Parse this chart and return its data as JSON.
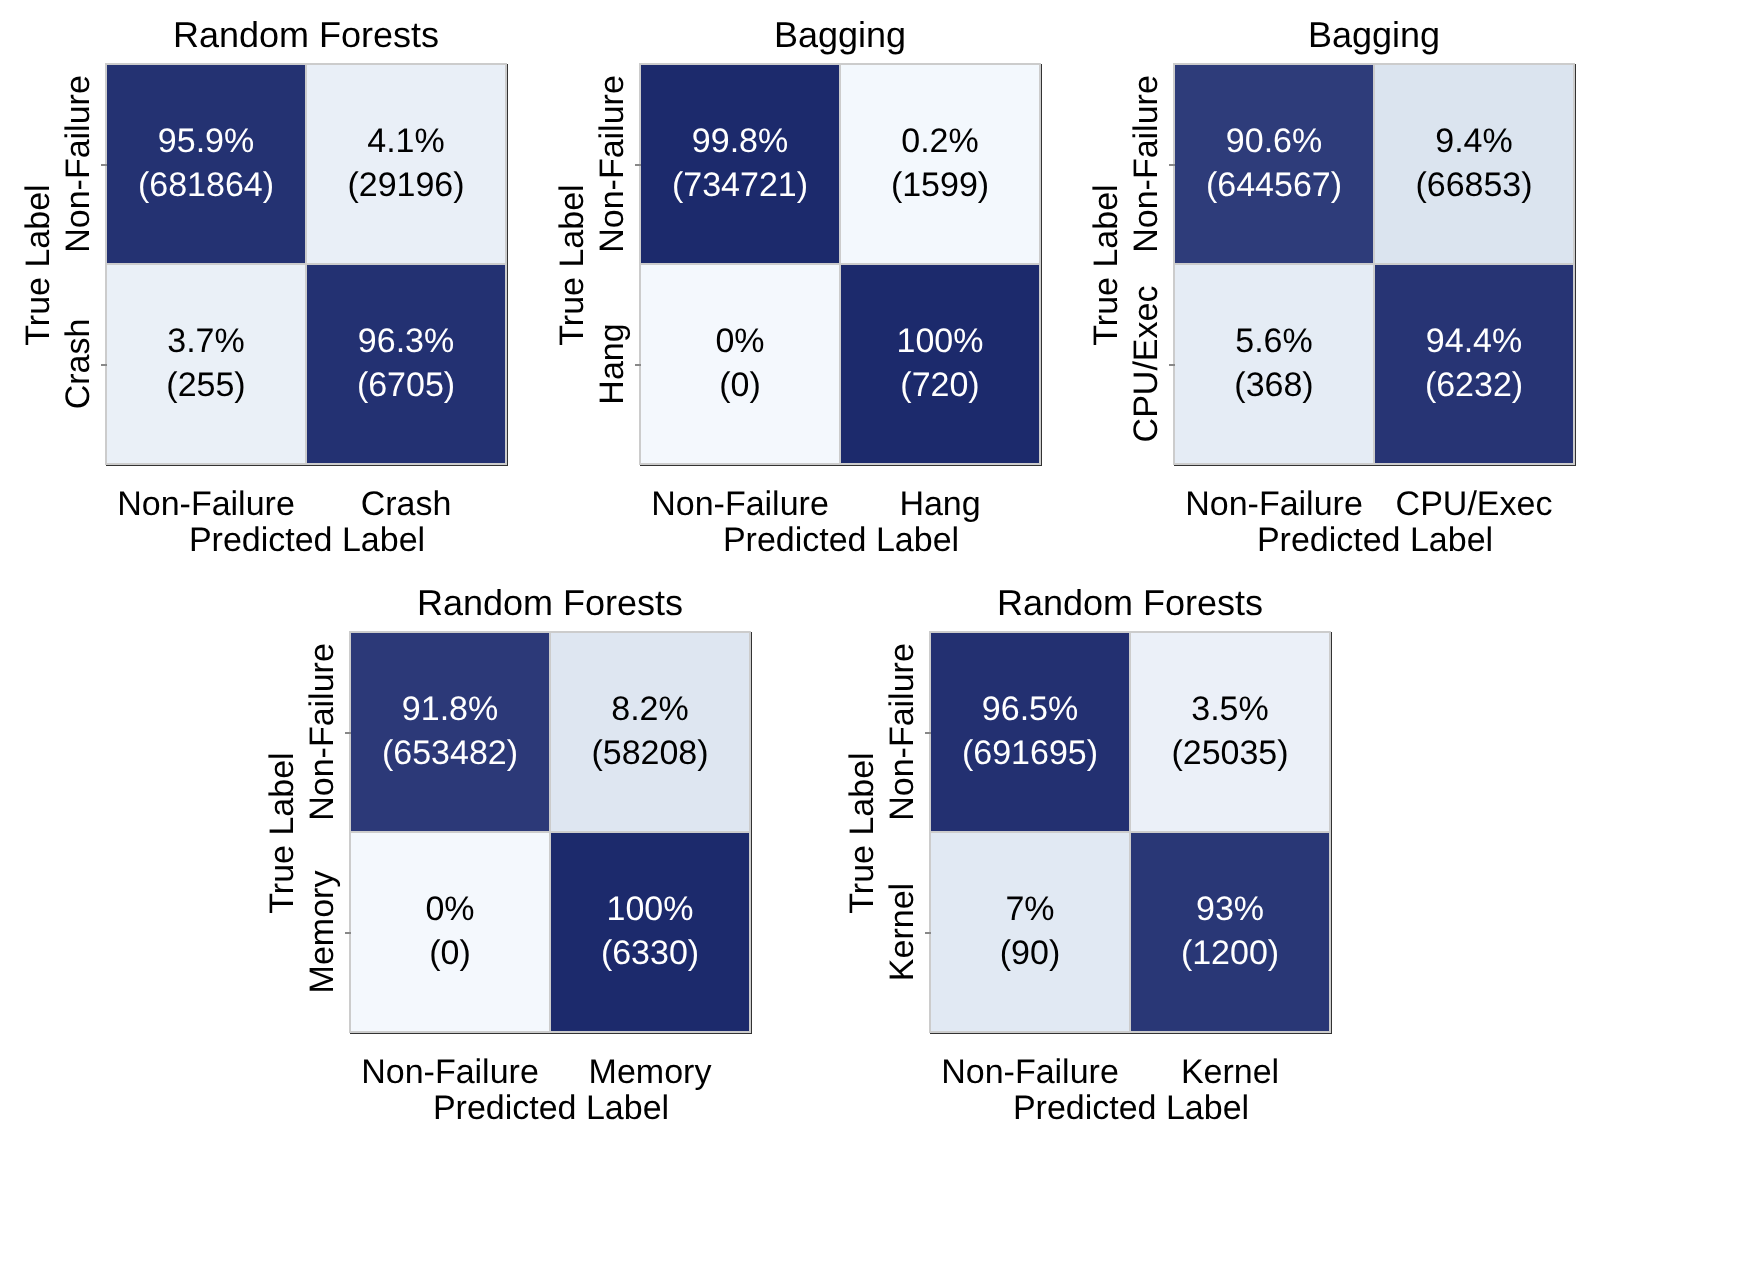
{
  "chart_data": [
    {
      "type": "heatmap",
      "title": "Random Forests",
      "xlabel": "Predicted Label",
      "ylabel": "True Label",
      "categories": [
        "Non-Failure",
        "Crash"
      ],
      "y_categories": [
        "Non-Failure",
        "Crash"
      ],
      "cells": [
        [
          95.9,
          4.1
        ],
        [
          3.7,
          96.3
        ]
      ],
      "cell_labels": [
        [
          "95.9%",
          "4.1%"
        ],
        [
          "3.7%",
          "96.3%"
        ]
      ],
      "annotations": [
        "(681864)",
        "(29196)",
        "(255)",
        "(6705)"
      ]
    },
    {
      "type": "heatmap",
      "title": "Bagging",
      "xlabel": "Predicted Label",
      "ylabel": "True Label",
      "categories": [
        "Non-Failure",
        "Hang"
      ],
      "y_categories": [
        "Non-Failure",
        "Hang"
      ],
      "cells": [
        [
          99.8,
          0.2
        ],
        [
          0,
          100
        ]
      ],
      "cell_labels": [
        [
          "99.8%",
          "0.2%"
        ],
        [
          "0%",
          "100%"
        ]
      ],
      "annotations": [
        "(734721)",
        "(1599)",
        "(0)",
        "(720)"
      ]
    },
    {
      "type": "heatmap",
      "title": "Bagging",
      "xlabel": "Predicted Label",
      "ylabel": "True Label",
      "categories": [
        "Non-Failure",
        "CPU/Exec"
      ],
      "y_categories": [
        "Non-Failure",
        "CPU/Exec"
      ],
      "cells": [
        [
          90.6,
          9.4
        ],
        [
          5.6,
          94.4
        ]
      ],
      "cell_labels": [
        [
          "90.6%",
          "9.4%"
        ],
        [
          "5.6%",
          "94.4%"
        ]
      ],
      "annotations": [
        "(644567)",
        "(66853)",
        "(368)",
        "(6232)"
      ]
    },
    {
      "type": "heatmap",
      "title": "Random Forests",
      "xlabel": "Predicted Label",
      "ylabel": "True Label",
      "categories": [
        "Non-Failure",
        "Memory"
      ],
      "y_categories": [
        "Non-Failure",
        "Memory"
      ],
      "cells": [
        [
          91.8,
          8.2
        ],
        [
          0,
          100
        ]
      ],
      "cell_labels": [
        [
          "91.8%",
          "8.2%"
        ],
        [
          "0%",
          "100%"
        ]
      ],
      "annotations": [
        "(653482)",
        "(58208)",
        "(0)",
        "(6330)"
      ]
    },
    {
      "type": "heatmap",
      "title": "Random Forests",
      "xlabel": "Predicted Label",
      "ylabel": "True Label",
      "categories": [
        "Non-Failure",
        "Kernel"
      ],
      "y_categories": [
        "Non-Failure",
        "Kernel"
      ],
      "cells": [
        [
          96.5,
          3.5
        ],
        [
          7,
          93
        ]
      ],
      "cell_labels": [
        [
          "96.5%",
          "3.5%"
        ],
        [
          "7%",
          "93%"
        ]
      ],
      "annotations": [
        "(691695)",
        "(25035)",
        "(90)",
        "(1200)"
      ]
    }
  ]
}
